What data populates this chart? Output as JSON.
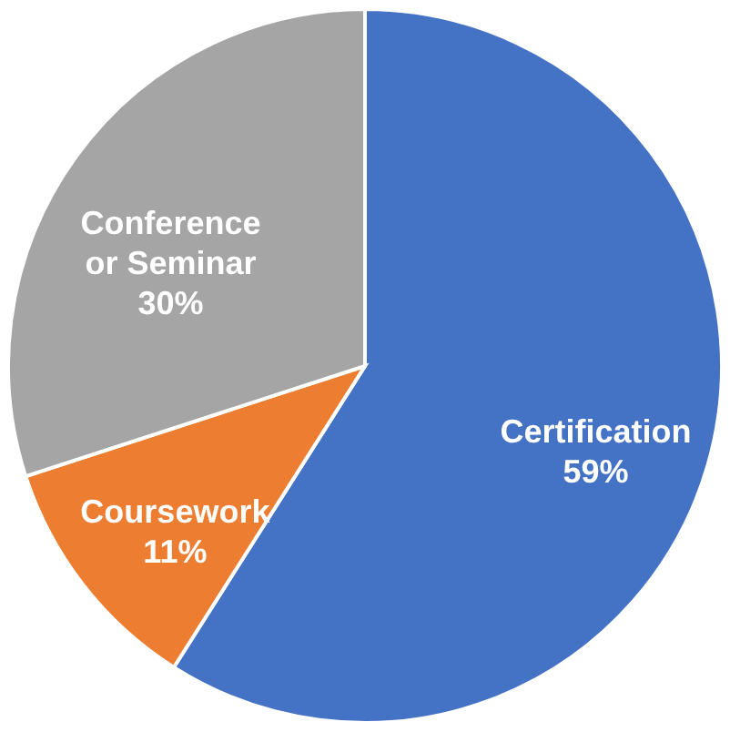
{
  "chart_data": {
    "type": "pie",
    "categories": [
      "Certification",
      "Coursework",
      "Conference or Seminar"
    ],
    "values": [
      59,
      11,
      30
    ],
    "colors": [
      "#4472c4",
      "#ed7d31",
      "#a5a5a5"
    ],
    "value_labels": [
      "59%",
      "11%",
      "30%"
    ]
  }
}
